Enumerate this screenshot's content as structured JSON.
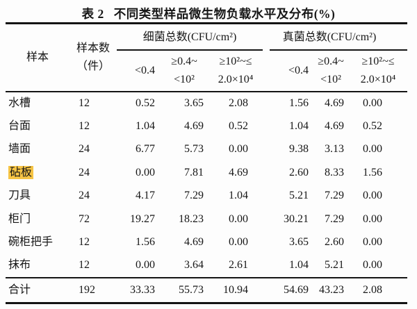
{
  "title": {
    "table_no": "表 2",
    "text": "不同类型样品微生物负载水平及分布(%)"
  },
  "highlight_color": "#f6c445",
  "table": {
    "header": {
      "sample": "样本",
      "sample_count_line1": "样本数",
      "sample_count_line2": "（件）",
      "bacteria_group": "细菌总数(CFU/cm²)",
      "fungi_group": "真菌总数(CFU/cm²)",
      "range_low": "<0.4",
      "range_mid_line1": "≥0.4~",
      "range_mid_line2": "<10²",
      "range_high_line1": "≥10²~≤",
      "range_high_line2": "2.0×10⁴"
    },
    "rows": [
      {
        "name": "水槽",
        "values": [
          "12",
          "0.52",
          "3.65",
          "2.08",
          "1.56",
          "4.69",
          "0.00"
        ]
      },
      {
        "name": "台面",
        "values": [
          "12",
          "1.04",
          "4.69",
          "0.52",
          "1.04",
          "4.69",
          "0.52"
        ]
      },
      {
        "name": "墙面",
        "values": [
          "24",
          "6.77",
          "5.73",
          "0.00",
          "9.38",
          "3.13",
          "0.00"
        ]
      },
      {
        "name": "砧板",
        "values": [
          "24",
          "0.00",
          "7.81",
          "4.69",
          "2.60",
          "8.33",
          "1.56"
        ],
        "highlighted": true
      },
      {
        "name": "刀具",
        "values": [
          "24",
          "4.17",
          "7.29",
          "1.04",
          "5.21",
          "7.29",
          "0.00"
        ]
      },
      {
        "name": "柜门",
        "values": [
          "72",
          "19.27",
          "18.23",
          "0.00",
          "30.21",
          "7.29",
          "0.00"
        ]
      },
      {
        "name": "碗柜把手",
        "values": [
          "12",
          "1.56",
          "4.69",
          "0.00",
          "3.65",
          "2.60",
          "0.00"
        ]
      },
      {
        "name": "抹布",
        "values": [
          "12",
          "0.00",
          "3.64",
          "2.61",
          "1.04",
          "5.21",
          "0.00"
        ]
      }
    ],
    "total_row": {
      "name": "合计",
      "values": [
        "192",
        "33.33",
        "55.73",
        "10.94",
        "54.69",
        "43.23",
        "2.08"
      ]
    }
  }
}
